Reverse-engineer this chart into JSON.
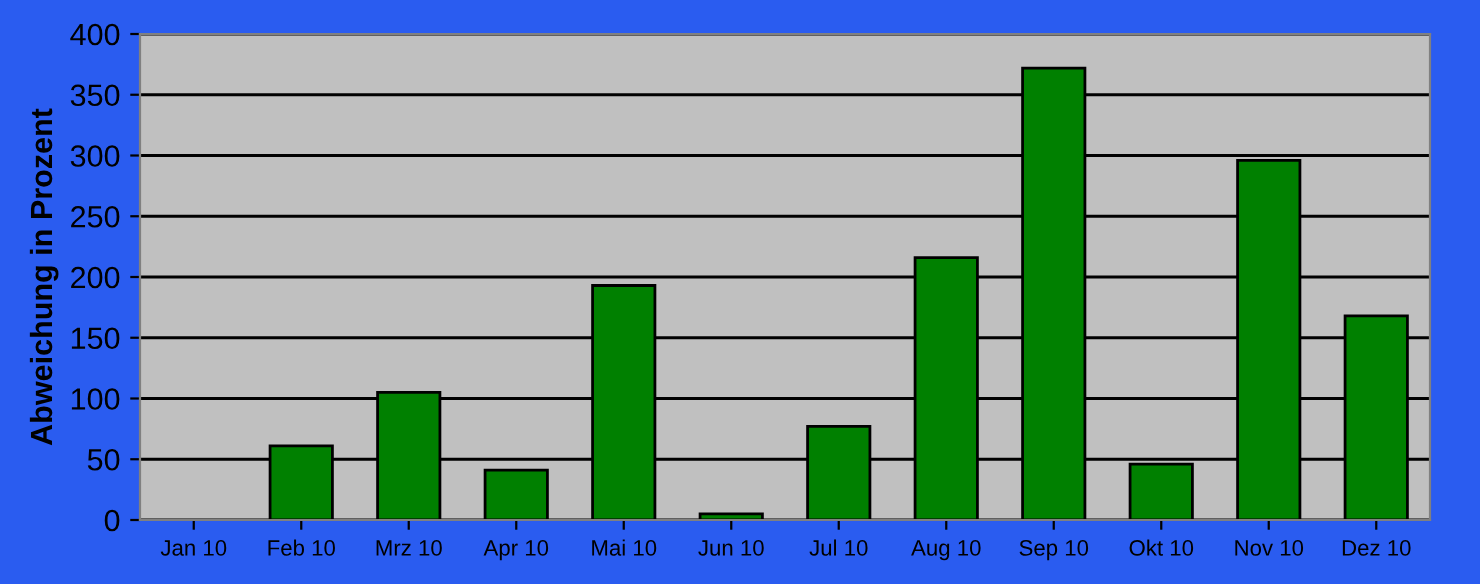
{
  "chart_data": {
    "type": "bar",
    "ylabel": "Abweichung in Prozent",
    "categories": [
      "Jan 10",
      "Feb 10",
      "Mrz 10",
      "Apr 10",
      "Mai 10",
      "Jun 10",
      "Jul 10",
      "Aug 10",
      "Sep 10",
      "Okt 10",
      "Nov 10",
      "Dez 10"
    ],
    "values": [
      null,
      61,
      105,
      41,
      193,
      5,
      77,
      216,
      372,
      46,
      296,
      168
    ],
    "color": "#008000",
    "ylim": [
      0,
      400
    ],
    "yticks": [
      0,
      50,
      100,
      150,
      200,
      250,
      300,
      350,
      400
    ],
    "grid": "y"
  }
}
